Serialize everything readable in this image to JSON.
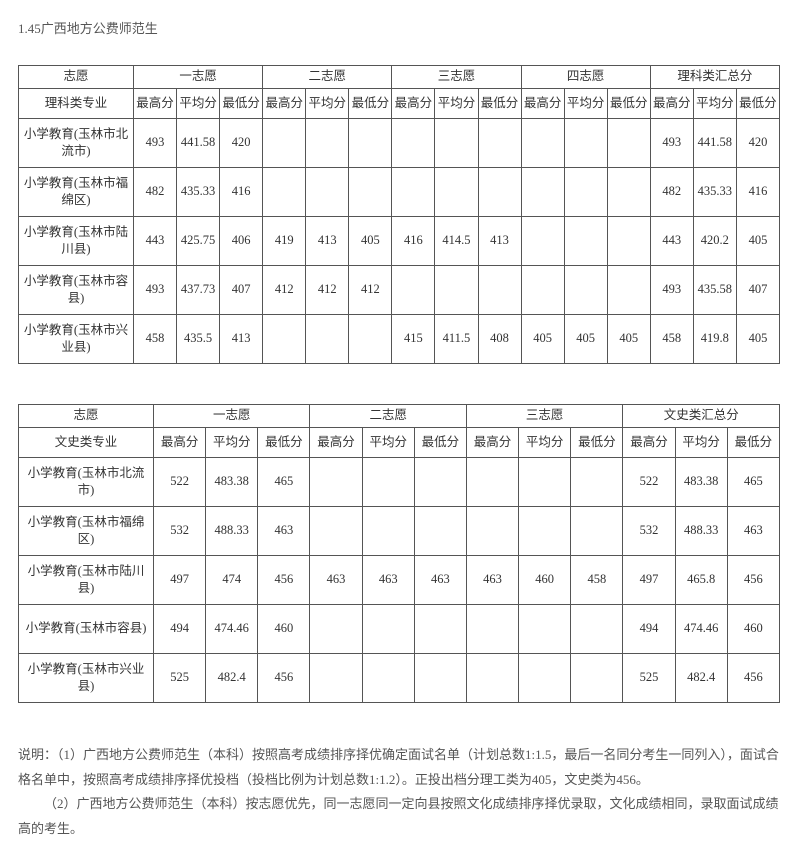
{
  "page_title": "1.45广西地方公费师范生",
  "table1": {
    "header_row1": [
      "志愿",
      "一志愿",
      "二志愿",
      "三志愿",
      "四志愿",
      "理科类汇总分"
    ],
    "header_major": "理科类专业",
    "sub_headers": [
      "最高分",
      "平均分",
      "最低分"
    ],
    "rows": [
      {
        "label": "小学教育(玉林市北流市)",
        "c": [
          "493",
          "441.58",
          "420",
          "",
          "",
          "",
          "",
          "",
          "",
          "",
          "",
          "",
          "493",
          "441.58",
          "420"
        ]
      },
      {
        "label": "小学教育(玉林市福绵区)",
        "c": [
          "482",
          "435.33",
          "416",
          "",
          "",
          "",
          "",
          "",
          "",
          "",
          "",
          "",
          "482",
          "435.33",
          "416"
        ]
      },
      {
        "label": "小学教育(玉林市陆川县)",
        "c": [
          "443",
          "425.75",
          "406",
          "419",
          "413",
          "405",
          "416",
          "414.5",
          "413",
          "",
          "",
          "",
          "443",
          "420.2",
          "405"
        ]
      },
      {
        "label": "小学教育(玉林市容县)",
        "c": [
          "493",
          "437.73",
          "407",
          "412",
          "412",
          "412",
          "",
          "",
          "",
          "",
          "",
          "",
          "493",
          "435.58",
          "407"
        ]
      },
      {
        "label": "小学教育(玉林市兴业县)",
        "c": [
          "458",
          "435.5",
          "413",
          "",
          "",
          "",
          "415",
          "411.5",
          "408",
          "405",
          "405",
          "405",
          "458",
          "419.8",
          "405"
        ]
      }
    ]
  },
  "table2": {
    "header_row1": [
      "志愿",
      "一志愿",
      "二志愿",
      "三志愿",
      "文史类汇总分"
    ],
    "header_major": "文史类专业",
    "sub_headers": [
      "最高分",
      "平均分",
      "最低分"
    ],
    "rows": [
      {
        "label": "小学教育(玉林市北流市)",
        "c": [
          "522",
          "483.38",
          "465",
          "",
          "",
          "",
          "",
          "",
          "",
          "522",
          "483.38",
          "465"
        ]
      },
      {
        "label": "小学教育(玉林市福绵区)",
        "c": [
          "532",
          "488.33",
          "463",
          "",
          "",
          "",
          "",
          "",
          "",
          "532",
          "488.33",
          "463"
        ]
      },
      {
        "label": "小学教育(玉林市陆川县)",
        "c": [
          "497",
          "474",
          "456",
          "463",
          "463",
          "463",
          "463",
          "460",
          "458",
          "497",
          "465.8",
          "456"
        ]
      },
      {
        "label": "小学教育(玉林市容县)",
        "c": [
          "494",
          "474.46",
          "460",
          "",
          "",
          "",
          "",
          "",
          "",
          "494",
          "474.46",
          "460"
        ]
      },
      {
        "label": "小学教育(玉林市兴业县)",
        "c": [
          "525",
          "482.4",
          "456",
          "",
          "",
          "",
          "",
          "",
          "",
          "525",
          "482.4",
          "456"
        ]
      }
    ]
  },
  "notes": {
    "p1": "说明：（1）广西地方公费师范生（本科）按照高考成绩排序择优确定面试名单（计划总数1:1.5，最后一名同分考生一同列入），面试合格名单中，按照高考成绩排序择优投档（投档比例为计划总数1:1.2）。正投出档分理工类为405，文史类为456。",
    "p2": "（2）广西地方公费师范生（本科）按志愿优先，同一志愿同一定向县按照文化成绩排序择优录取，文化成绩相同，录取面试成绩高的考生。"
  }
}
